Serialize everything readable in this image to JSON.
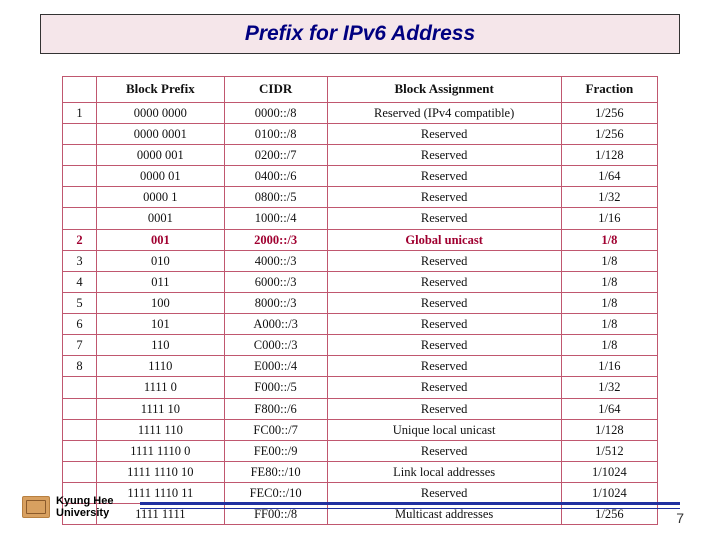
{
  "title": "Prefix for IPv6 Address",
  "columns": [
    "",
    "Block Prefix",
    "CIDR",
    "Block Assignment",
    "Fraction"
  ],
  "column_widths": [
    "34px",
    "auto",
    "auto",
    "auto",
    "auto"
  ],
  "rows": [
    {
      "idx": "1",
      "prefix": "0000 0000",
      "cidr": "0000::/8",
      "assign": "Reserved (IPv4 compatible)",
      "frac": "1/256",
      "emph": false
    },
    {
      "idx": "",
      "prefix": "0000 0001",
      "cidr": "0100::/8",
      "assign": "Reserved",
      "frac": "1/256",
      "emph": false
    },
    {
      "idx": "",
      "prefix": "0000 001",
      "cidr": "0200::/7",
      "assign": "Reserved",
      "frac": "1/128",
      "emph": false
    },
    {
      "idx": "",
      "prefix": "0000 01",
      "cidr": "0400::/6",
      "assign": "Reserved",
      "frac": "1/64",
      "emph": false
    },
    {
      "idx": "",
      "prefix": "0000 1",
      "cidr": "0800::/5",
      "assign": "Reserved",
      "frac": "1/32",
      "emph": false
    },
    {
      "idx": "",
      "prefix": "0001",
      "cidr": "1000::/4",
      "assign": "Reserved",
      "frac": "1/16",
      "emph": false
    },
    {
      "idx": "2",
      "prefix": "001",
      "cidr": "2000::/3",
      "assign": "Global unicast",
      "frac": "1/8",
      "emph": true
    },
    {
      "idx": "3",
      "prefix": "010",
      "cidr": "4000::/3",
      "assign": "Reserved",
      "frac": "1/8",
      "emph": false
    },
    {
      "idx": "4",
      "prefix": "011",
      "cidr": "6000::/3",
      "assign": "Reserved",
      "frac": "1/8",
      "emph": false
    },
    {
      "idx": "5",
      "prefix": "100",
      "cidr": "8000::/3",
      "assign": "Reserved",
      "frac": "1/8",
      "emph": false
    },
    {
      "idx": "6",
      "prefix": "101",
      "cidr": "A000::/3",
      "assign": "Reserved",
      "frac": "1/8",
      "emph": false
    },
    {
      "idx": "7",
      "prefix": "110",
      "cidr": "C000::/3",
      "assign": "Reserved",
      "frac": "1/8",
      "emph": false
    },
    {
      "idx": "8",
      "prefix": "1110",
      "cidr": "E000::/4",
      "assign": "Reserved",
      "frac": "1/16",
      "emph": false
    },
    {
      "idx": "",
      "prefix": "1111 0",
      "cidr": "F000::/5",
      "assign": "Reserved",
      "frac": "1/32",
      "emph": false
    },
    {
      "idx": "",
      "prefix": "1111 10",
      "cidr": "F800::/6",
      "assign": "Reserved",
      "frac": "1/64",
      "emph": false
    },
    {
      "idx": "",
      "prefix": "1111 110",
      "cidr": "FC00::/7",
      "assign": "Unique local unicast",
      "frac": "1/128",
      "emph": false
    },
    {
      "idx": "",
      "prefix": "1111 1110 0",
      "cidr": "FE00::/9",
      "assign": "Reserved",
      "frac": "1/512",
      "emph": false
    },
    {
      "idx": "",
      "prefix": "1111 1110 10",
      "cidr": "FE80::/10",
      "assign": "Link local addresses",
      "frac": "1/1024",
      "emph": false
    },
    {
      "idx": "",
      "prefix": "1111 1110 11",
      "cidr": "FEC0::/10",
      "assign": "Reserved",
      "frac": "1/1024",
      "emph": false
    },
    {
      "idx": "",
      "prefix": "1111 1111",
      "cidr": "FF00::/8",
      "assign": "Multicast addresses",
      "frac": "1/256",
      "emph": false
    }
  ],
  "footer": {
    "uni_line1": "Kyung Hee",
    "uni_line2": "University"
  },
  "page_number": "7",
  "colors": {
    "title_text": "#000080",
    "title_bg": "#f5e6ea",
    "border": "#c0576f",
    "emph": "#a00030",
    "rule": "#2030a0"
  }
}
